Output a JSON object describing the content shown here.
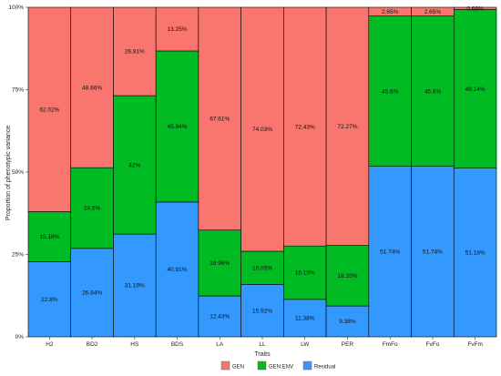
{
  "chart_data": {
    "type": "bar",
    "stacked": true,
    "normalized": true,
    "xlabel": "Traits",
    "ylabel": "Proportion of phenotypic variance",
    "ylim": [
      0,
      1
    ],
    "yticks": [
      "0%",
      "25%",
      "50%",
      "75%",
      "100%"
    ],
    "categories": [
      "H2",
      "BD2",
      "HS",
      "BDS",
      "LA",
      "LL",
      "LW",
      "PER",
      "FmFo",
      "FvFo",
      "FvFm"
    ],
    "legend_position": "bottom",
    "series": [
      {
        "name": "Residual",
        "color": "#3399ff",
        "values": [
          22.8,
          26.84,
          31.19,
          40.91,
          12.43,
          15.92,
          11.38,
          9.38,
          51.74,
          51.74,
          51.18
        ],
        "labels": [
          "22.8%",
          "26.84%",
          "31.19%",
          "40.91%",
          "12.43%",
          "15.92%",
          "11.38%",
          "9.38%",
          "51.74%",
          "51.74%",
          "51.18%"
        ]
      },
      {
        "name": "GEN:ENV",
        "color": "#00bb22",
        "values": [
          15.18,
          24.5,
          42,
          45.84,
          19.96,
          10.05,
          16.19,
          18.35,
          45.6,
          45.6,
          48.14
        ],
        "labels": [
          "15.18%",
          "24.5%",
          "42%",
          "45.84%",
          "19.96%",
          "10.05%",
          "16.19%",
          "18.35%",
          "45.6%",
          "45.6%",
          "48.14%"
        ]
      },
      {
        "name": "GEN",
        "color": "#f8766d",
        "values": [
          62.02,
          48.66,
          26.81,
          13.25,
          67.61,
          74.03,
          72.43,
          72.27,
          2.65,
          2.65,
          0.68
        ],
        "labels": [
          "62.02%",
          "48.66%",
          "26.81%",
          "13.25%",
          "67.61%",
          "74.03%",
          "72.43%",
          "72.27%",
          "2.65%",
          "2.65%",
          "0.68%"
        ]
      }
    ],
    "legend": [
      {
        "name": "GEN",
        "color": "#f8766d"
      },
      {
        "name": "GEN:ENV",
        "color": "#00bb22"
      },
      {
        "name": "Residual",
        "color": "#3399ff"
      }
    ]
  }
}
